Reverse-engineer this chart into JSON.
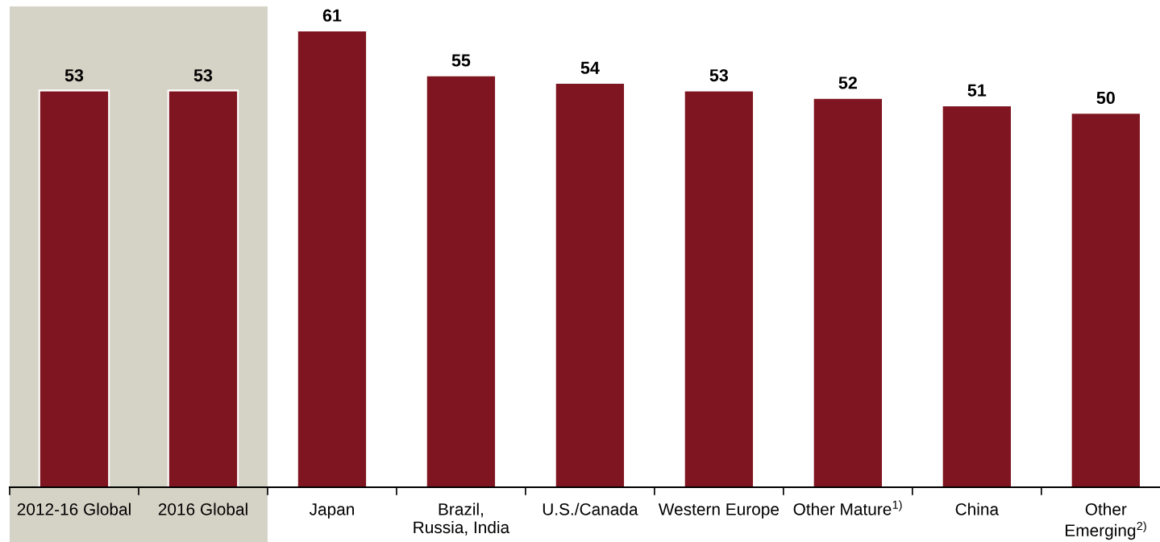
{
  "chart_data": {
    "type": "bar",
    "categories": [
      "2012-16 Global",
      "2016 Global",
      "Japan",
      "Brazil,\nRussia, India",
      "U.S./Canada",
      "Western Europe",
      "Other Mature$^{1)}$",
      "China",
      "Other\nEmerging$^{2)}$"
    ],
    "values": [
      53,
      53,
      61,
      55,
      54,
      53,
      52,
      51,
      50
    ],
    "color": "#7f1520",
    "data_labels": true,
    "bands": [
      {
        "axis": "x",
        "from": "2012-16 Global",
        "to": "2016 Global",
        "color": "#d5d2c6"
      }
    ],
    "grid": false
  }
}
